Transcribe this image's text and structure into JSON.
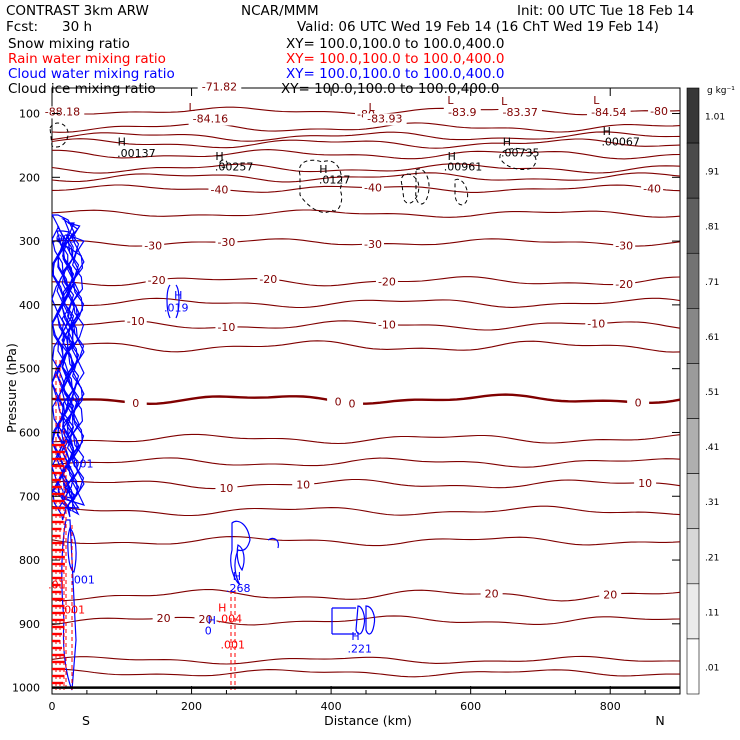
{
  "header": {
    "model": "CONTRAST  3km ARW",
    "org": "NCAR/MMM",
    "init": "Init: 00 UTC Tue 18 Feb 14",
    "fcst_label": "Fcst:",
    "fcst_value": "30 h",
    "valid": "Valid: 06 UTC Wed 19 Feb 14 (16 ChT Wed 19 Feb 14)"
  },
  "fields": [
    {
      "label": "Snow mixing ratio",
      "xy": "XY= 100.0,100.0 to 100.0,400.0",
      "color": "#000000"
    },
    {
      "label": "Rain water mixing ratio",
      "xy": "XY= 100.0,100.0 to 100.0,400.0",
      "color": "#ff0000"
    },
    {
      "label": "Cloud water mixing ratio",
      "xy": "XY= 100.0,100.0 to 100.0,400.0",
      "color": "#0000ff"
    },
    {
      "label": "Cloud ice mixing ratio",
      "xy": "XY= 100.0,100.0 to 100.0,400.0",
      "color": "#000000"
    }
  ],
  "colors": {
    "temperature": "#800000",
    "freezing_line": "#800000",
    "rain": "#ff0000",
    "cloud_water": "#0000ff",
    "ice": "#000000"
  },
  "chart_data": {
    "type": "contour",
    "xlabel": "Distance (km)",
    "ylabel": "Pressure (hPa)",
    "xlim": [
      0,
      900
    ],
    "ylim": [
      1010,
      60
    ],
    "xticks": [
      0,
      200,
      400,
      600,
      800
    ],
    "yticks": [
      100,
      200,
      300,
      400,
      500,
      600,
      700,
      800,
      900,
      1000
    ],
    "end_labels": {
      "left": "S",
      "right": "N"
    },
    "colorbar": {
      "unit": "g kg⁻¹",
      "labels": [
        "1.01",
        ".91",
        ".81",
        ".71",
        ".61",
        ".51",
        ".41",
        ".31",
        ".21",
        ".11",
        ".01"
      ]
    },
    "temperature_contours": [
      {
        "p": 96,
        "amp": 4,
        "label": "-80",
        "lx": [
          450,
          870
        ]
      },
      {
        "p": 122,
        "amp": 5,
        "label": null,
        "lx": []
      },
      {
        "p": 136,
        "amp": 5,
        "label": null,
        "lx": []
      },
      {
        "p": 147,
        "amp": 5,
        "label": null,
        "lx": []
      },
      {
        "p": 164,
        "amp": 5,
        "label": null,
        "lx": []
      },
      {
        "p": 186,
        "amp": 5,
        "label": null,
        "lx": []
      },
      {
        "p": 200,
        "amp": 5,
        "label": null,
        "lx": []
      },
      {
        "p": 218,
        "amp": 4,
        "label": "-40",
        "lx": [
          240,
          460,
          860
        ]
      },
      {
        "p": 257,
        "amp": 4,
        "label": null,
        "lx": []
      },
      {
        "p": 302,
        "amp": 4,
        "label": "-30",
        "lx": [
          145,
          250,
          460,
          820
        ]
      },
      {
        "p": 363,
        "amp": 5,
        "label": "-20",
        "lx": [
          150,
          310,
          480,
          820
        ]
      },
      {
        "p": 397,
        "amp": 5,
        "label": null,
        "lx": []
      },
      {
        "p": 432,
        "amp": 5,
        "label": "-10",
        "lx": [
          120,
          250,
          480,
          780
        ]
      },
      {
        "p": 465,
        "amp": 6,
        "label": null,
        "lx": []
      },
      {
        "p": 548,
        "amp": 5,
        "label": "0",
        "lx": [
          120,
          410,
          430,
          840
        ]
      },
      {
        "p": 610,
        "amp": 5,
        "label": null,
        "lx": []
      },
      {
        "p": 647,
        "amp": 5,
        "label": null,
        "lx": []
      },
      {
        "p": 681,
        "amp": 5,
        "label": "10",
        "lx": [
          250,
          360,
          850
        ]
      },
      {
        "p": 723,
        "amp": 5,
        "label": null,
        "lx": []
      },
      {
        "p": 770,
        "amp": 5,
        "label": null,
        "lx": []
      },
      {
        "p": 855,
        "amp": 6,
        "label": "20",
        "lx": [
          630,
          800
        ]
      },
      {
        "p": 895,
        "amp": 5,
        "label": "20",
        "lx": [
          160,
          220
        ]
      },
      {
        "p": 957,
        "amp": 4,
        "label": null,
        "lx": []
      },
      {
        "p": 977,
        "amp": 4,
        "label": null,
        "lx": []
      }
    ],
    "extrema": [
      {
        "x": 240,
        "p": 64,
        "text": "-71.82",
        "kind": "value"
      },
      {
        "x": 15,
        "p": 103,
        "text": "-88.18",
        "kind": "value"
      },
      {
        "x": 200,
        "p": 96,
        "text": "L",
        "kind": "mark"
      },
      {
        "x": 227,
        "p": 114,
        "text": "-84.16",
        "kind": "value"
      },
      {
        "x": 458,
        "p": 96,
        "text": "L",
        "kind": "mark"
      },
      {
        "x": 477,
        "p": 114,
        "text": "-83.93",
        "kind": "value"
      },
      {
        "x": 571,
        "p": 85,
        "text": "L",
        "kind": "mark"
      },
      {
        "x": 588,
        "p": 104,
        "text": "-83.9",
        "kind": "value"
      },
      {
        "x": 648,
        "p": 87,
        "text": "L",
        "kind": "mark"
      },
      {
        "x": 671,
        "p": 104,
        "text": "-83.37",
        "kind": "value"
      },
      {
        "x": 780,
        "p": 85,
        "text": "L",
        "kind": "mark"
      },
      {
        "x": 798,
        "p": 104,
        "text": "-84.54",
        "kind": "value"
      }
    ],
    "ice_labels": [
      {
        "x": 100,
        "p": 150,
        "text": "H"
      },
      {
        "x": 121,
        "p": 168,
        "text": ".00137"
      },
      {
        "x": 240,
        "p": 173,
        "text": "H"
      },
      {
        "x": 261,
        "p": 189,
        "text": ".00257"
      },
      {
        "x": 389,
        "p": 193,
        "text": "H"
      },
      {
        "x": 405,
        "p": 210,
        "text": ".0127"
      },
      {
        "x": 573,
        "p": 173,
        "text": "H"
      },
      {
        "x": 589,
        "p": 189,
        "text": ".00961"
      },
      {
        "x": 652,
        "p": 150,
        "text": "H"
      },
      {
        "x": 671,
        "p": 167,
        "text": ".00735"
      },
      {
        "x": 795,
        "p": 134,
        "text": "H"
      },
      {
        "x": 815,
        "p": 150,
        "text": ".00067"
      }
    ],
    "cloud_labels": [
      {
        "x": 18,
        "p": 302,
        "text": ".003"
      },
      {
        "x": 181,
        "p": 391,
        "text": "H"
      },
      {
        "x": 178,
        "p": 410,
        "text": ".019"
      },
      {
        "x": 42,
        "p": 655,
        "text": ".001"
      },
      {
        "x": 44,
        "p": 837,
        "text": ".001"
      },
      {
        "x": 265,
        "p": 831,
        "text": "H"
      },
      {
        "x": 267,
        "p": 850,
        "text": ".268"
      },
      {
        "x": 229,
        "p": 900,
        "text": "H"
      },
      {
        "x": 224,
        "p": 917,
        "text": "0"
      },
      {
        "x": 435,
        "p": 925,
        "text": "H"
      },
      {
        "x": 441,
        "p": 945,
        "text": ".221"
      }
    ],
    "rain_labels": [
      {
        "x": 7,
        "p": 845,
        "text": ".01"
      },
      {
        "x": 30,
        "p": 884,
        "text": ".001"
      },
      {
        "x": 244,
        "p": 881,
        "text": "H"
      },
      {
        "x": 255,
        "p": 898,
        "text": ".004"
      },
      {
        "x": 259,
        "p": 939,
        "text": ".001"
      }
    ]
  }
}
